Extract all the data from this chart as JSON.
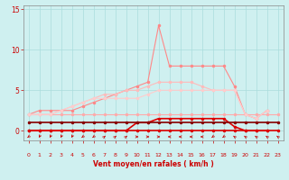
{
  "x_ticks": [
    0,
    1,
    2,
    3,
    4,
    5,
    6,
    7,
    8,
    9,
    10,
    11,
    12,
    13,
    14,
    15,
    16,
    17,
    18,
    19,
    20,
    21,
    22,
    23
  ],
  "xlabel": "Vent moyen/en rafales ( km/h )",
  "ylim": [
    -1.2,
    15.5
  ],
  "xlim": [
    -0.5,
    23.5
  ],
  "yticks": [
    0,
    5,
    10,
    15
  ],
  "background_color": "#cff0f0",
  "grid_color": "#aadddd",
  "series": [
    {
      "y": [
        2,
        2,
        2,
        2,
        2,
        2,
        2,
        2,
        2,
        2,
        2,
        2,
        2,
        2,
        2,
        2,
        2,
        2,
        2,
        2,
        2,
        2,
        2,
        2
      ],
      "color": "#ffaaaa",
      "lw": 0.8,
      "marker": "o",
      "ms": 1.5
    },
    {
      "y": [
        2,
        2.5,
        2.5,
        2.5,
        2.5,
        3,
        3.5,
        4,
        4.5,
        5,
        5.5,
        6,
        13,
        8,
        8,
        8,
        8,
        8,
        8,
        5.5,
        2,
        1.5,
        2.5,
        null
      ],
      "color": "#ff8888",
      "lw": 0.8,
      "marker": "o",
      "ms": 1.5
    },
    {
      "y": [
        2,
        2,
        2,
        2.5,
        3,
        3.5,
        4,
        4.5,
        4.5,
        5,
        5,
        5.5,
        6,
        6,
        6,
        6,
        5.5,
        5,
        5,
        5,
        2,
        1.5,
        2.5,
        null
      ],
      "color": "#ffbbbb",
      "lw": 0.8,
      "marker": "o",
      "ms": 1.5
    },
    {
      "y": [
        2,
        2,
        2,
        2.5,
        3,
        3.5,
        4,
        4,
        4,
        4,
        4,
        4.5,
        5,
        5,
        5,
        5,
        5,
        5,
        5,
        5,
        2,
        1.5,
        2.5,
        null
      ],
      "color": "#ffcccc",
      "lw": 0.8,
      "marker": "o",
      "ms": 1.5
    },
    {
      "y": [
        0,
        0,
        0,
        0,
        0,
        0,
        0,
        0,
        0,
        0,
        0,
        0,
        0,
        0,
        0,
        0,
        0,
        0,
        0,
        0,
        0,
        0,
        0,
        0
      ],
      "color": "#dd0000",
      "lw": 1.2,
      "marker": "o",
      "ms": 1.5
    },
    {
      "y": [
        0,
        0,
        0,
        0,
        0,
        0,
        0,
        0,
        0,
        0,
        1,
        1,
        1.5,
        1.5,
        1.5,
        1.5,
        1.5,
        1.5,
        1.5,
        0.5,
        0,
        0,
        0,
        null
      ],
      "color": "#dd0000",
      "lw": 1.2,
      "marker": "o",
      "ms": 1.5
    },
    {
      "y": [
        1,
        1,
        1,
        1,
        1,
        1,
        1,
        1,
        1,
        1,
        1,
        1,
        1,
        1,
        1,
        1,
        1,
        1,
        1,
        1,
        1,
        1,
        1,
        1
      ],
      "color": "#880000",
      "lw": 1.2,
      "marker": "o",
      "ms": 1.5
    }
  ],
  "wind_angles": [
    225,
    202,
    202,
    202,
    202,
    225,
    225,
    45,
    45,
    45,
    90,
    90,
    90,
    270,
    270,
    270,
    270,
    225,
    225,
    315,
    315,
    315,
    315,
    315
  ],
  "title_color": "#cc0000",
  "axis_color": "#888888",
  "tick_color": "#cc0000"
}
